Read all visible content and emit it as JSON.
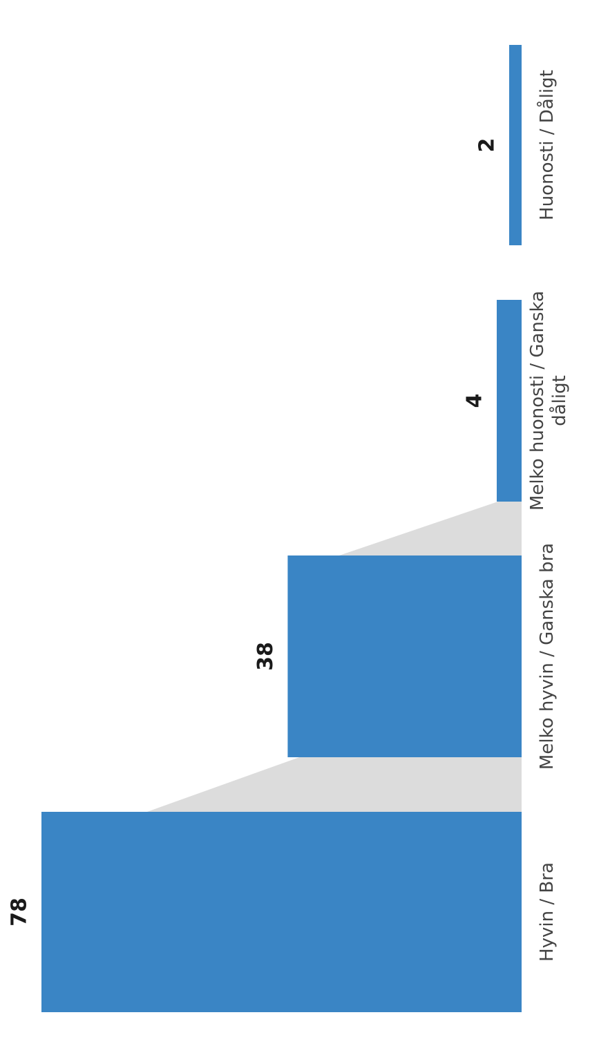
{
  "chart_data": {
    "type": "bar",
    "orientation": "vertical-bars-rotated-page",
    "categories": [
      "Hyvin / Bra",
      "Melko hyvin / Ganska bra",
      "Melko huonosti / Ganska dåligt",
      "Huonosti / Dåligt"
    ],
    "category_lines": [
      [
        "Hyvin / Bra"
      ],
      [
        "Melko hyvin / Ganska bra"
      ],
      [
        "Melko huonosti / Ganska",
        "dåligt"
      ],
      [
        "Huonosti / Dåligt"
      ]
    ],
    "values": [
      78,
      38,
      4,
      2
    ],
    "value_labels": [
      "78",
      "38",
      "4",
      "2"
    ],
    "ylim": [
      0,
      78
    ],
    "grid": false,
    "legend": "none",
    "bar_color": "#3a85c5",
    "connector_color": "#dcdcdc"
  }
}
